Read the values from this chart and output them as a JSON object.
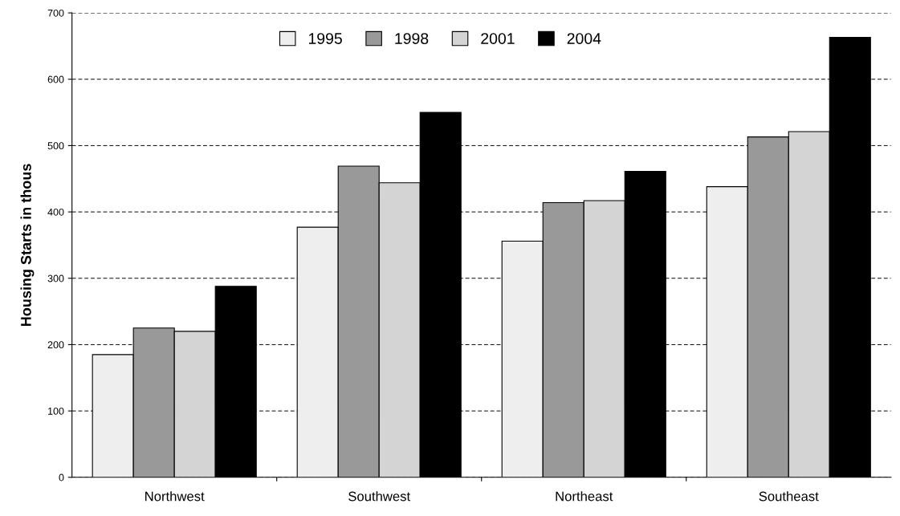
{
  "chart_data": {
    "type": "bar",
    "ylabel": "Housing Starts in thous",
    "categories": [
      "Northwest",
      "Southwest",
      "Northeast",
      "Southeast"
    ],
    "series": [
      {
        "name": "1995",
        "color": "#eeeeee",
        "values": [
          185,
          377,
          356,
          438
        ]
      },
      {
        "name": "1998",
        "color": "#999999",
        "values": [
          225,
          469,
          414,
          513
        ]
      },
      {
        "name": "2001",
        "color": "#d4d4d4",
        "values": [
          220,
          444,
          417,
          521
        ]
      },
      {
        "name": "2004",
        "color": "#000000",
        "values": [
          288,
          550,
          461,
          663
        ]
      }
    ],
    "ylim": [
      0,
      700
    ],
    "yticks": [
      0,
      100,
      200,
      300,
      400,
      500,
      600,
      700
    ],
    "grid": "y",
    "legend": "top"
  }
}
